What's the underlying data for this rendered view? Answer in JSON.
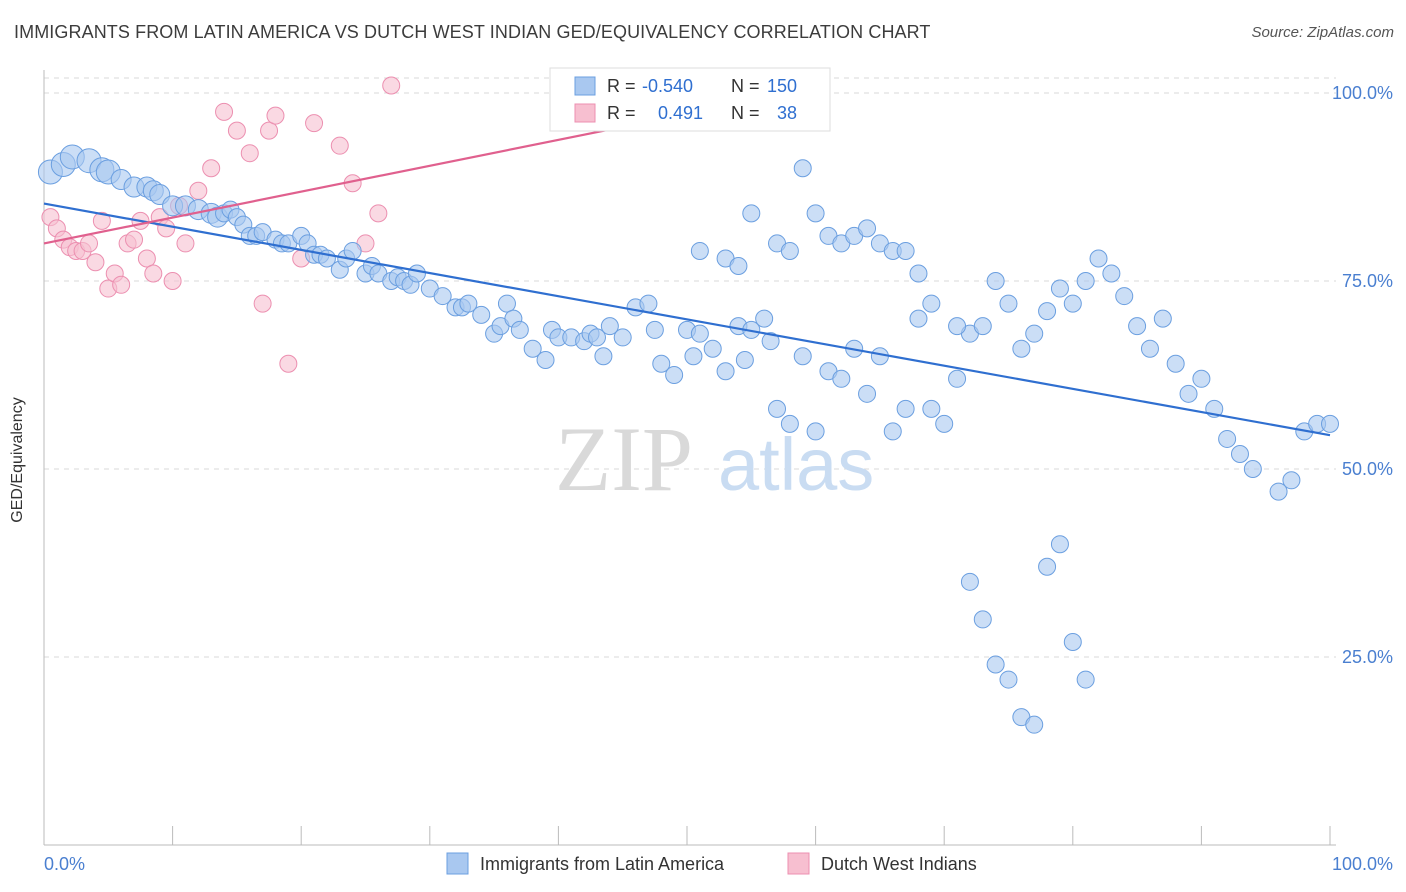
{
  "header": {
    "title": "IMMIGRANTS FROM LATIN AMERICA VS DUTCH WEST INDIAN GED/EQUIVALENCY CORRELATION CHART",
    "source": "Source: ZipAtlas.com"
  },
  "watermark": {
    "zip": "ZIP",
    "atlas": "atlas"
  },
  "colors": {
    "blue_fill": "#a9c8f0",
    "blue_stroke": "#6b9fe0",
    "blue_line": "#2f6fd0",
    "pink_fill": "#f7bfd0",
    "pink_stroke": "#ec8fb0",
    "pink_line": "#e0608e",
    "tick_label": "#4a7fd0",
    "grid": "#d9d9d9"
  },
  "legend": {
    "rows": [
      {
        "r_label": "R =",
        "r_value": "-0.540",
        "n_label": "N =",
        "n_value": "150"
      },
      {
        "r_label": "R =",
        "r_value": "0.491",
        "n_label": "N =",
        "n_value": "38"
      }
    ]
  },
  "chart_data": {
    "type": "scatter",
    "title": "IMMIGRANTS FROM LATIN AMERICA VS DUTCH WEST INDIAN GED/EQUIVALENCY CORRELATION CHART",
    "xlabel": "",
    "ylabel": "GED/Equivalency",
    "xlim": [
      0,
      100
    ],
    "ylim": [
      0,
      102
    ],
    "x_tick_labels": [
      "0.0%",
      "100.0%"
    ],
    "y_ticks": [
      25,
      50,
      75,
      100
    ],
    "y_tick_labels": [
      "25.0%",
      "50.0%",
      "75.0%",
      "100.0%"
    ],
    "grid": "horizontal dashed",
    "legend_position": "bottom",
    "series": [
      {
        "name": "Immigrants from Latin America",
        "r": -0.54,
        "n": 150,
        "trend": {
          "x": [
            0,
            100
          ],
          "y": [
            85.3,
            54.5
          ]
        },
        "points": [
          [
            0.5,
            89.5
          ],
          [
            1.5,
            90.5
          ],
          [
            2.2,
            91.5
          ],
          [
            3.5,
            91
          ],
          [
            4.5,
            89.8
          ],
          [
            5,
            89.5
          ],
          [
            6,
            88.5
          ],
          [
            7,
            87.5
          ],
          [
            8,
            87.5
          ],
          [
            8.5,
            87
          ],
          [
            9,
            86.5
          ],
          [
            10,
            85
          ],
          [
            11,
            85
          ],
          [
            12,
            84.5
          ],
          [
            13,
            84
          ],
          [
            13.5,
            83.5
          ],
          [
            14,
            84
          ],
          [
            14.5,
            84.5
          ],
          [
            15,
            83.5
          ],
          [
            15.5,
            82.5
          ],
          [
            16,
            81
          ],
          [
            16.5,
            81
          ],
          [
            17,
            81.5
          ],
          [
            18,
            80.5
          ],
          [
            18.5,
            80
          ],
          [
            19,
            80
          ],
          [
            20,
            81
          ],
          [
            20.5,
            80
          ],
          [
            21,
            78.5
          ],
          [
            21.5,
            78.5
          ],
          [
            22,
            78
          ],
          [
            23,
            76.5
          ],
          [
            23.5,
            78
          ],
          [
            24,
            79
          ],
          [
            25,
            76
          ],
          [
            25.5,
            77
          ],
          [
            26,
            76
          ],
          [
            27,
            75
          ],
          [
            27.5,
            75.5
          ],
          [
            28,
            75
          ],
          [
            28.5,
            74.5
          ],
          [
            29,
            76
          ],
          [
            30,
            74
          ],
          [
            31,
            73
          ],
          [
            32,
            71.5
          ],
          [
            32.5,
            71.5
          ],
          [
            33,
            72
          ],
          [
            34,
            70.5
          ],
          [
            35,
            68
          ],
          [
            35.5,
            69
          ],
          [
            36,
            72
          ],
          [
            36.5,
            70
          ],
          [
            37,
            68.5
          ],
          [
            38,
            66
          ],
          [
            39,
            64.5
          ],
          [
            39.5,
            68.5
          ],
          [
            40,
            67.5
          ],
          [
            41,
            67.5
          ],
          [
            42,
            67
          ],
          [
            42.5,
            68
          ],
          [
            43,
            67.5
          ],
          [
            43.5,
            65
          ],
          [
            44,
            69
          ],
          [
            45,
            67.5
          ],
          [
            46,
            71.5
          ],
          [
            47,
            72
          ],
          [
            47.5,
            68.5
          ],
          [
            48,
            64
          ],
          [
            49,
            62.5
          ],
          [
            50,
            68.5
          ],
          [
            50.5,
            65
          ],
          [
            51,
            68
          ],
          [
            52,
            66
          ],
          [
            53,
            63
          ],
          [
            54,
            69
          ],
          [
            54.5,
            64.5
          ],
          [
            55,
            68.5
          ],
          [
            56,
            70
          ],
          [
            56.5,
            67
          ],
          [
            57,
            58
          ],
          [
            58,
            56
          ],
          [
            59,
            65
          ],
          [
            60,
            55
          ],
          [
            61,
            63
          ],
          [
            62,
            62
          ],
          [
            63,
            66
          ],
          [
            64,
            60
          ],
          [
            65,
            65
          ],
          [
            66,
            55
          ],
          [
            67,
            58
          ],
          [
            68,
            70
          ],
          [
            69,
            58
          ],
          [
            70,
            56
          ],
          [
            71,
            62
          ],
          [
            72,
            68
          ],
          [
            73,
            69
          ],
          [
            74,
            75
          ],
          [
            75,
            72
          ],
          [
            76,
            66
          ],
          [
            77,
            68
          ],
          [
            78,
            71
          ],
          [
            79,
            74
          ],
          [
            80,
            72
          ],
          [
            81,
            75
          ],
          [
            82,
            78
          ],
          [
            83,
            76
          ],
          [
            84,
            73
          ],
          [
            85,
            69
          ],
          [
            86,
            66
          ],
          [
            87,
            70
          ],
          [
            88,
            64
          ],
          [
            89,
            60
          ],
          [
            90,
            62
          ],
          [
            91,
            58
          ],
          [
            92,
            54
          ],
          [
            93,
            52
          ],
          [
            94,
            50
          ],
          [
            96,
            47
          ],
          [
            97,
            48.5
          ],
          [
            98,
            55
          ],
          [
            99,
            56
          ],
          [
            100,
            56
          ],
          [
            51,
            79
          ],
          [
            53,
            78
          ],
          [
            54,
            77
          ],
          [
            55,
            84
          ],
          [
            57,
            80
          ],
          [
            58,
            79
          ],
          [
            59,
            90
          ],
          [
            60,
            84
          ],
          [
            61,
            81
          ],
          [
            62,
            80
          ],
          [
            63,
            81
          ],
          [
            64,
            82
          ],
          [
            65,
            80
          ],
          [
            66,
            79
          ],
          [
            67,
            79
          ],
          [
            68,
            76
          ],
          [
            69,
            72
          ],
          [
            71,
            69
          ],
          [
            72,
            35
          ],
          [
            73,
            30
          ],
          [
            74,
            24
          ],
          [
            75,
            22
          ],
          [
            76,
            17
          ],
          [
            77,
            16
          ],
          [
            78,
            37
          ],
          [
            79,
            40
          ],
          [
            80,
            27
          ],
          [
            81,
            22
          ]
        ]
      },
      {
        "name": "Dutch West Indians",
        "r": 0.491,
        "n": 38,
        "trend": {
          "x": [
            0,
            61
          ],
          "y": [
            80,
            101
          ]
        },
        "points": [
          [
            0.5,
            83.5
          ],
          [
            1,
            82
          ],
          [
            1.5,
            80.5
          ],
          [
            2,
            79.5
          ],
          [
            2.5,
            79
          ],
          [
            3,
            79
          ],
          [
            3.5,
            80
          ],
          [
            4,
            77.5
          ],
          [
            4.5,
            83
          ],
          [
            5,
            74
          ],
          [
            5.5,
            76
          ],
          [
            6,
            74.5
          ],
          [
            6.5,
            80
          ],
          [
            7,
            80.5
          ],
          [
            7.5,
            83
          ],
          [
            8,
            78
          ],
          [
            8.5,
            76
          ],
          [
            9,
            83.5
          ],
          [
            9.5,
            82
          ],
          [
            10,
            75
          ],
          [
            10.5,
            85
          ],
          [
            11,
            80
          ],
          [
            12,
            87
          ],
          [
            13,
            90
          ],
          [
            14,
            97.5
          ],
          [
            15,
            95
          ],
          [
            16,
            92
          ],
          [
            17,
            72
          ],
          [
            17.5,
            95
          ],
          [
            18,
            97
          ],
          [
            19,
            64
          ],
          [
            20,
            78
          ],
          [
            21,
            96
          ],
          [
            23,
            93
          ],
          [
            24,
            88
          ],
          [
            25,
            80
          ],
          [
            26,
            84
          ],
          [
            27,
            101
          ]
        ]
      }
    ]
  }
}
